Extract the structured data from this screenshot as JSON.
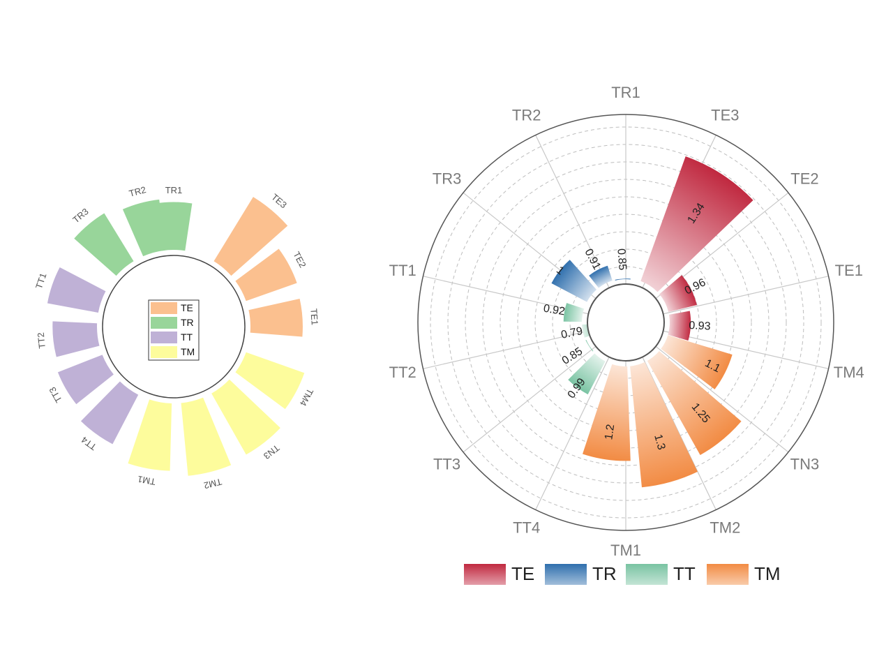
{
  "chart_data": [
    {
      "type": "bar",
      "subtype": "radial-bar",
      "categories": [
        "TR1",
        "TE3",
        "TE2",
        "TE1",
        "TM4",
        "TN3",
        "TM2",
        "TM1",
        "TT4",
        "TT3",
        "TT2",
        "TT1",
        "TR3",
        "TR2"
      ],
      "groups": [
        "TR",
        "TE",
        "TE",
        "TE",
        "TM",
        "TM",
        "TM",
        "TM",
        "TT",
        "TT",
        "TT",
        "TT",
        "TR",
        "TR"
      ],
      "values": [
        0.85,
        1.34,
        0.96,
        0.93,
        1.1,
        1.25,
        1.3,
        1.2,
        0.99,
        0.85,
        0.79,
        0.92,
        1.0,
        0.91
      ],
      "legend": {
        "position": "center",
        "items": [
          {
            "name": "TE",
            "color": "#fbc08f"
          },
          {
            "name": "TR",
            "color": "#98d59a"
          },
          {
            "name": "TT",
            "color": "#bfb1d6"
          },
          {
            "name": "TM",
            "color": "#fdfc9c"
          }
        ]
      },
      "grid": false
    },
    {
      "type": "bar",
      "subtype": "polar-bar",
      "categories": [
        "TR1",
        "TE3",
        "TE2",
        "TE1",
        "TM4",
        "TN3",
        "TM2",
        "TM1",
        "TT4",
        "TT3",
        "TT2",
        "TT1",
        "TR3",
        "TR2"
      ],
      "groups": [
        "TR",
        "TE",
        "TE",
        "TE",
        "TM",
        "TM",
        "TM",
        "TM",
        "TT",
        "TT",
        "TT",
        "TT",
        "TR",
        "TR"
      ],
      "bars": [
        {
          "group": "TE",
          "values": [
            1.34,
            0.96,
            0.93
          ],
          "labels": [
            "1.34",
            "0.96",
            "0.93"
          ]
        },
        {
          "group": "TM",
          "values": [
            1.1,
            1.25,
            1.3,
            1.2
          ],
          "labels": [
            "1.1",
            "1.25",
            "1.3",
            "1.2"
          ]
        },
        {
          "group": "TT",
          "values": [
            0.99,
            0.85,
            0.79,
            0.92
          ],
          "labels": [
            "0.99",
            "0.85",
            "0.79",
            "0.92"
          ]
        },
        {
          "group": "TR",
          "values": [
            1.0,
            0.91,
            0.85
          ],
          "labels": [
            "1",
            "0.91",
            "0.85"
          ]
        }
      ],
      "legend": {
        "position": "bottom",
        "items": [
          {
            "name": "TE",
            "color": "#c0283f"
          },
          {
            "name": "TR",
            "color": "#2f6fad"
          },
          {
            "name": "TT",
            "color": "#79c3a2"
          },
          {
            "name": "TM",
            "color": "#f28b43"
          }
        ]
      },
      "grid": true
    }
  ]
}
